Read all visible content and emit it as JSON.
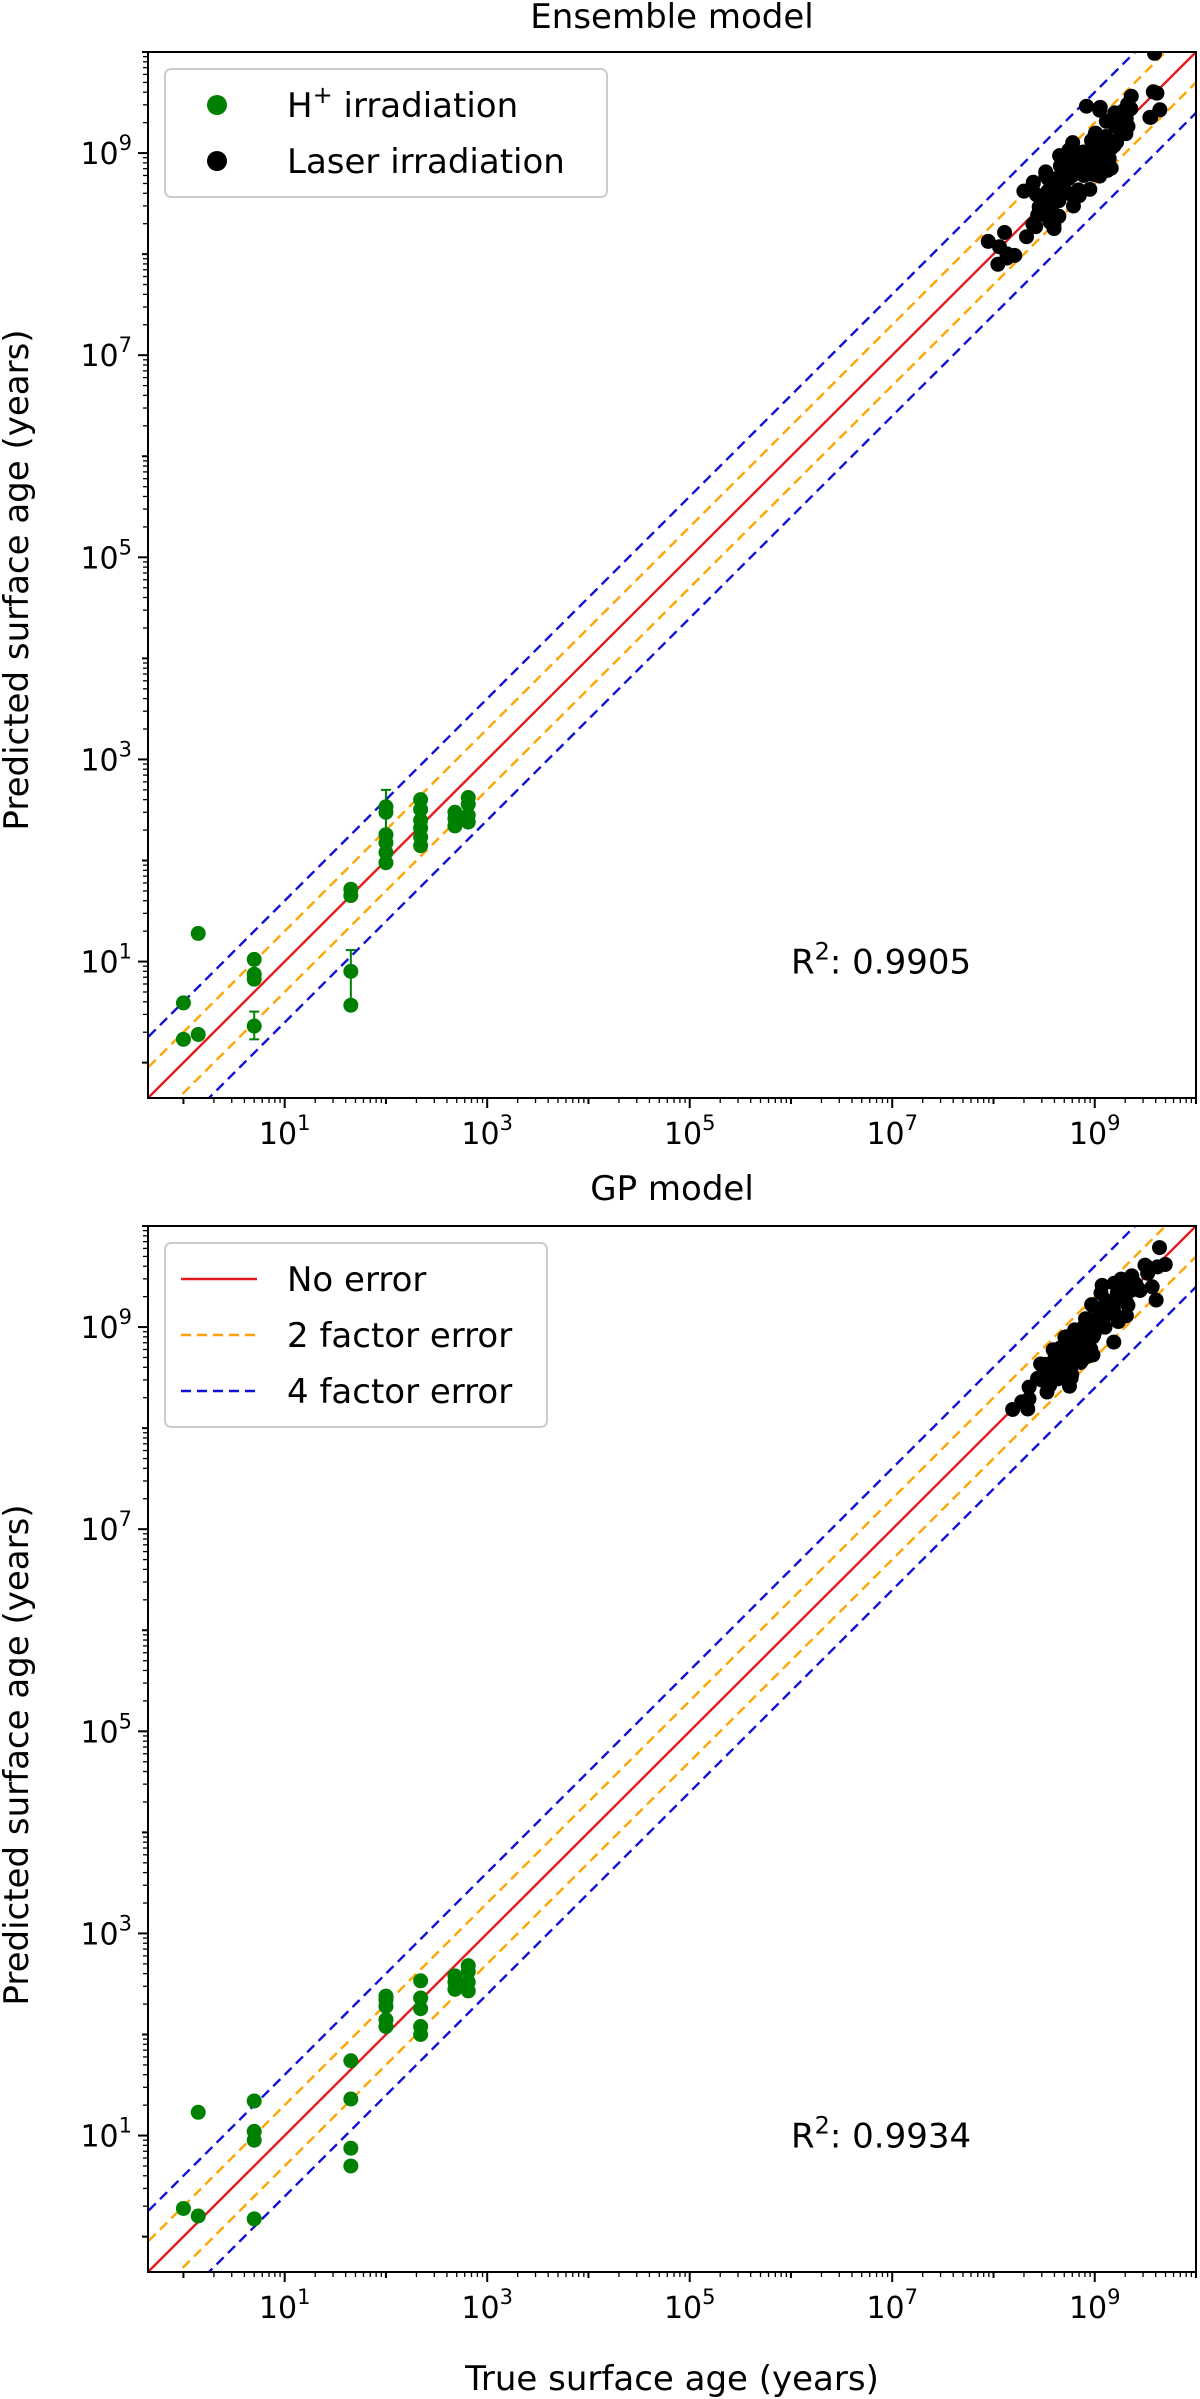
{
  "figure": {
    "xlabel": "True surface age (years)",
    "ylabel": "Predicted surface age (years)"
  },
  "chart_data": [
    {
      "type": "scatter",
      "title": "Ensemble model",
      "xlabel": "",
      "ylabel": "Predicted surface age (years)",
      "xscale": "log",
      "yscale": "log",
      "xlim_exp": [
        -0.35,
        10.0
      ],
      "ylim_exp": [
        -0.35,
        10.0
      ],
      "x_ticks": [
        {
          "exp": 1,
          "label": "10",
          "sup": "1"
        },
        {
          "exp": 3,
          "label": "10",
          "sup": "3"
        },
        {
          "exp": 5,
          "label": "10",
          "sup": "5"
        },
        {
          "exp": 7,
          "label": "10",
          "sup": "7"
        },
        {
          "exp": 9,
          "label": "10",
          "sup": "9"
        }
      ],
      "y_ticks": [
        {
          "exp": 1,
          "label": "10",
          "sup": "1"
        },
        {
          "exp": 3,
          "label": "10",
          "sup": "3"
        },
        {
          "exp": 5,
          "label": "10",
          "sup": "5"
        },
        {
          "exp": 7,
          "label": "10",
          "sup": "7"
        },
        {
          "exp": 9,
          "label": "10",
          "sup": "9"
        }
      ],
      "r2_label": "R",
      "r2_sup": "2",
      "r2_value": ": 0.9905",
      "legend": {
        "position": "top-left",
        "items": [
          {
            "name": "H",
            "sup": "+",
            "suffix": " irradiation",
            "marker": "dot",
            "color": "#008000"
          },
          {
            "name": "Laser irradiation",
            "sup": "",
            "suffix": "",
            "marker": "dot",
            "color": "#000000"
          }
        ]
      },
      "reference_lines": [
        {
          "name": "No error",
          "factor": 1,
          "color": "#e41a1c",
          "style": "solid"
        },
        {
          "name": "2 factor error",
          "factor": 2,
          "color": "#ffa500",
          "style": "dashed"
        },
        {
          "name": "4 factor error",
          "factor": 4,
          "color": "#1010d8",
          "style": "dashed"
        }
      ],
      "series": [
        {
          "name": "H+ irradiation",
          "color": "#008000",
          "points": [
            {
              "x": 1.0,
              "y": 1.7
            },
            {
              "x": 1.0,
              "y": 3.9
            },
            {
              "x": 1.4,
              "y": 1.9
            },
            {
              "x": 1.4,
              "y": 19.0
            },
            {
              "x": 5.0,
              "y": 2.3,
              "err": [
                1.7,
                3.2
              ]
            },
            {
              "x": 5.0,
              "y": 6.7
            },
            {
              "x": 5.0,
              "y": 7.5
            },
            {
              "x": 5.0,
              "y": 10.5
            },
            {
              "x": 45,
              "y": 3.7
            },
            {
              "x": 45,
              "y": 8.0,
              "err": [
                3.5,
                13
              ]
            },
            {
              "x": 45,
              "y": 45
            },
            {
              "x": 45,
              "y": 52
            },
            {
              "x": 100,
              "y": 95
            },
            {
              "x": 100,
              "y": 120
            },
            {
              "x": 100,
              "y": 150
            },
            {
              "x": 100,
              "y": 180
            },
            {
              "x": 100,
              "y": 300,
              "err": [
                180,
                500
              ]
            },
            {
              "x": 100,
              "y": 340
            },
            {
              "x": 220,
              "y": 140
            },
            {
              "x": 220,
              "y": 170
            },
            {
              "x": 220,
              "y": 210
            },
            {
              "x": 220,
              "y": 250
            },
            {
              "x": 220,
              "y": 320
            },
            {
              "x": 220,
              "y": 400
            },
            {
              "x": 480,
              "y": 220
            },
            {
              "x": 480,
              "y": 260
            },
            {
              "x": 480,
              "y": 300
            },
            {
              "x": 650,
              "y": 240
            },
            {
              "x": 650,
              "y": 280
            },
            {
              "x": 650,
              "y": 360
            },
            {
              "x": 650,
              "y": 420
            }
          ]
        },
        {
          "name": "Laser irradiation",
          "color": "#000000",
          "spread": 0.2,
          "cluster": {
            "n": 135,
            "x_range_exp": [
              7.8,
              9.85
            ],
            "seed": 11
          }
        }
      ]
    },
    {
      "type": "scatter",
      "title": "GP model",
      "xlabel": "True surface age (years)",
      "ylabel": "Predicted surface age (years)",
      "xscale": "log",
      "yscale": "log",
      "xlim_exp": [
        -0.35,
        10.0
      ],
      "ylim_exp": [
        -0.35,
        10.0
      ],
      "x_ticks": [
        {
          "exp": 1,
          "label": "10",
          "sup": "1"
        },
        {
          "exp": 3,
          "label": "10",
          "sup": "3"
        },
        {
          "exp": 5,
          "label": "10",
          "sup": "5"
        },
        {
          "exp": 7,
          "label": "10",
          "sup": "7"
        },
        {
          "exp": 9,
          "label": "10",
          "sup": "9"
        }
      ],
      "y_ticks": [
        {
          "exp": 1,
          "label": "10",
          "sup": "1"
        },
        {
          "exp": 3,
          "label": "10",
          "sup": "3"
        },
        {
          "exp": 5,
          "label": "10",
          "sup": "5"
        },
        {
          "exp": 7,
          "label": "10",
          "sup": "7"
        },
        {
          "exp": 9,
          "label": "10",
          "sup": "9"
        }
      ],
      "r2_label": "R",
      "r2_sup": "2",
      "r2_value": ": 0.9934",
      "legend": {
        "position": "top-left",
        "items": [
          {
            "name": "No error",
            "sup": "",
            "suffix": "",
            "marker": "line",
            "color": "#e41a1c"
          },
          {
            "name": "2 factor error",
            "sup": "",
            "suffix": "",
            "marker": "dash",
            "color": "#ffa500"
          },
          {
            "name": "4 factor error",
            "sup": "",
            "suffix": "",
            "marker": "dash",
            "color": "#1010d8"
          }
        ]
      },
      "reference_lines": [
        {
          "name": "No error",
          "factor": 1,
          "color": "#e41a1c",
          "style": "solid"
        },
        {
          "name": "2 factor error",
          "factor": 2,
          "color": "#ffa500",
          "style": "dashed"
        },
        {
          "name": "4 factor error",
          "factor": 4,
          "color": "#1010d8",
          "style": "dashed"
        }
      ],
      "series": [
        {
          "name": "H+ irradiation",
          "color": "#008000",
          "points": [
            {
              "x": 1.0,
              "y": 1.9
            },
            {
              "x": 1.4,
              "y": 1.6
            },
            {
              "x": 1.4,
              "y": 17.0
            },
            {
              "x": 5.0,
              "y": 1.5
            },
            {
              "x": 5.0,
              "y": 9.0
            },
            {
              "x": 5.0,
              "y": 11.0
            },
            {
              "x": 5.0,
              "y": 22.0
            },
            {
              "x": 45,
              "y": 5.0
            },
            {
              "x": 45,
              "y": 7.5
            },
            {
              "x": 45,
              "y": 23
            },
            {
              "x": 45,
              "y": 55
            },
            {
              "x": 100,
              "y": 120
            },
            {
              "x": 100,
              "y": 140
            },
            {
              "x": 100,
              "y": 190
            },
            {
              "x": 100,
              "y": 220
            },
            {
              "x": 100,
              "y": 240
            },
            {
              "x": 220,
              "y": 100
            },
            {
              "x": 220,
              "y": 120
            },
            {
              "x": 220,
              "y": 180
            },
            {
              "x": 220,
              "y": 230
            },
            {
              "x": 220,
              "y": 340
            },
            {
              "x": 480,
              "y": 280
            },
            {
              "x": 480,
              "y": 330
            },
            {
              "x": 480,
              "y": 380
            },
            {
              "x": 650,
              "y": 270
            },
            {
              "x": 650,
              "y": 330
            },
            {
              "x": 650,
              "y": 420
            },
            {
              "x": 650,
              "y": 480
            }
          ]
        },
        {
          "name": "Laser irradiation",
          "color": "#000000",
          "spread": 0.13,
          "cluster": {
            "n": 125,
            "x_range_exp": [
              7.75,
              9.9
            ],
            "seed": 29
          }
        }
      ]
    }
  ]
}
